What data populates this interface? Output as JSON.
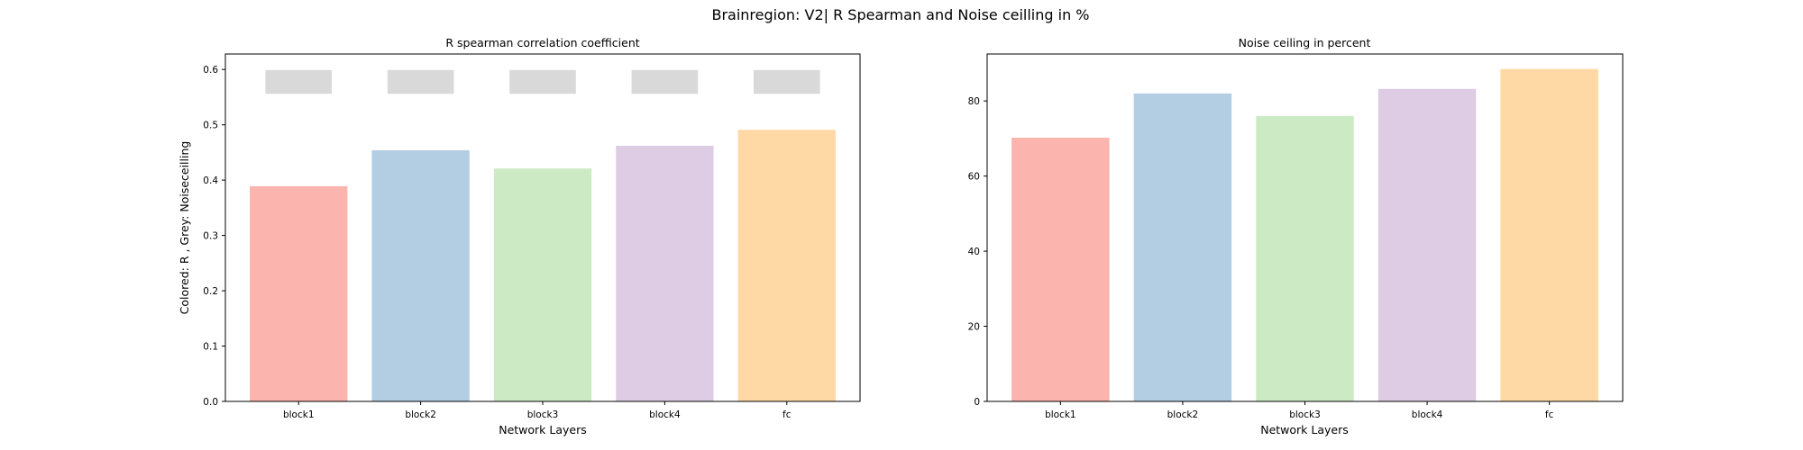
{
  "suptitle": "Brainregion: V2| R Spearman and Noise ceilling in %",
  "chart_data": [
    {
      "type": "bar",
      "title": "R spearman correlation coefficient",
      "xlabel": "Network Layers",
      "ylabel": "Colored: R , Grey: Noiseceilling",
      "categories": [
        "block1",
        "block2",
        "block3",
        "block4",
        "fc"
      ],
      "series": [
        {
          "values": [
            0.389,
            0.454,
            0.421,
            0.462,
            0.491
          ]
        }
      ],
      "noise_ceiling_range": [
        0.556,
        0.599
      ],
      "ylim": [
        0,
        0.628
      ],
      "yticks": [
        0.0,
        0.1,
        0.2,
        0.3,
        0.4,
        0.5,
        0.6
      ],
      "ytick_labels": [
        "0.0",
        "0.1",
        "0.2",
        "0.3",
        "0.4",
        "0.5",
        "0.6"
      ],
      "grid": false,
      "colors": [
        "#fbb4ae",
        "#b3cde3",
        "#ccebc5",
        "#decbe4",
        "#fed9a6"
      ],
      "noise_color": "#d9d9d9"
    },
    {
      "type": "bar",
      "title": "Noise ceiling in percent",
      "xlabel": "Network Layers",
      "ylabel": "",
      "categories": [
        "block1",
        "block2",
        "block3",
        "block4",
        "fc"
      ],
      "series": [
        {
          "values": [
            70.2,
            82.0,
            76.0,
            83.2,
            88.5
          ]
        }
      ],
      "ylim": [
        0,
        92.5
      ],
      "yticks": [
        0,
        20,
        40,
        60,
        80
      ],
      "ytick_labels": [
        "0",
        "20",
        "40",
        "60",
        "80"
      ],
      "grid": false,
      "colors": [
        "#fbb4ae",
        "#b3cde3",
        "#ccebc5",
        "#decbe4",
        "#fed9a6"
      ]
    }
  ]
}
